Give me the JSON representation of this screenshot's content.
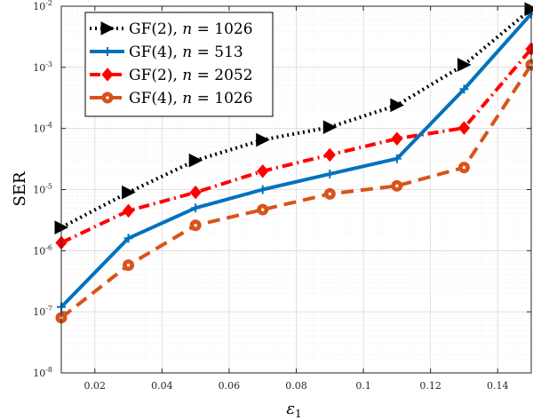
{
  "chart_data": {
    "type": "line",
    "xlabel": "ε",
    "xlabel_sub": "1",
    "ylabel": "SER",
    "xlim": [
      0.01,
      0.15
    ],
    "ylim": [
      1e-08,
      0.01
    ],
    "yscale": "log",
    "grid": true,
    "legend_position": "top-left",
    "x_ticks": [
      {
        "value": 0.02,
        "label": "0.02"
      },
      {
        "value": 0.04,
        "label": "0.04"
      },
      {
        "value": 0.06,
        "label": "0.06"
      },
      {
        "value": 0.08,
        "label": "0.08"
      },
      {
        "value": 0.1,
        "label": "0.1"
      },
      {
        "value": 0.12,
        "label": "0.12"
      },
      {
        "value": 0.14,
        "label": "0.14"
      }
    ],
    "y_ticks": [
      {
        "value": 1e-08,
        "base": "10",
        "exp": "-8"
      },
      {
        "value": 1e-07,
        "base": "10",
        "exp": "-7"
      },
      {
        "value": 1e-06,
        "base": "10",
        "exp": "-6"
      },
      {
        "value": 1e-05,
        "base": "10",
        "exp": "-5"
      },
      {
        "value": 0.0001,
        "base": "10",
        "exp": "-4"
      },
      {
        "value": 0.001,
        "base": "10",
        "exp": "-3"
      },
      {
        "value": 0.01,
        "base": "10",
        "exp": "-2"
      }
    ],
    "series": [
      {
        "name": "GF(2), n = 1026",
        "label_prefix": "GF(2), ",
        "label_var": "n",
        "label_suffix": " = 1026",
        "color": "#000000",
        "dash": "dotted",
        "marker": "triangle-right",
        "x": [
          0.01,
          0.03,
          0.05,
          0.07,
          0.09,
          0.11,
          0.13,
          0.15
        ],
        "y": [
          2.4e-06,
          9e-06,
          3e-05,
          6.5e-05,
          0.000105,
          0.00024,
          0.0011,
          0.009
        ]
      },
      {
        "name": "GF(4), n = 513",
        "label_prefix": "GF(4), ",
        "label_var": "n",
        "label_suffix": " = 513",
        "color": "#0072BD",
        "dash": "solid",
        "marker": "plus",
        "x": [
          0.01,
          0.03,
          0.05,
          0.07,
          0.09,
          0.11,
          0.13,
          0.15
        ],
        "y": [
          1.2e-07,
          1.6e-06,
          5e-06,
          1e-05,
          1.8e-05,
          3.2e-05,
          0.00044,
          0.0075
        ]
      },
      {
        "name": "GF(2), n = 2052",
        "label_prefix": "GF(2), ",
        "label_var": "n",
        "label_suffix": " = 2052",
        "color": "#FF0000",
        "dash": "dashdot",
        "marker": "diamond",
        "x": [
          0.01,
          0.03,
          0.05,
          0.07,
          0.09,
          0.11,
          0.13,
          0.15
        ],
        "y": [
          1.35e-06,
          4.5e-06,
          9e-06,
          2e-05,
          3.7e-05,
          6.8e-05,
          0.000102,
          0.002
        ]
      },
      {
        "name": "GF(4), n = 1026",
        "label_prefix": "GF(4), ",
        "label_var": "n",
        "label_suffix": " = 1026",
        "color": "#D95319",
        "dash": "dashed",
        "marker": "circle",
        "x": [
          0.01,
          0.03,
          0.05,
          0.07,
          0.09,
          0.11,
          0.13,
          0.15
        ],
        "y": [
          8e-08,
          5.8e-07,
          2.6e-06,
          4.7e-06,
          8.5e-06,
          1.15e-05,
          2.3e-05,
          0.0011
        ]
      }
    ]
  }
}
